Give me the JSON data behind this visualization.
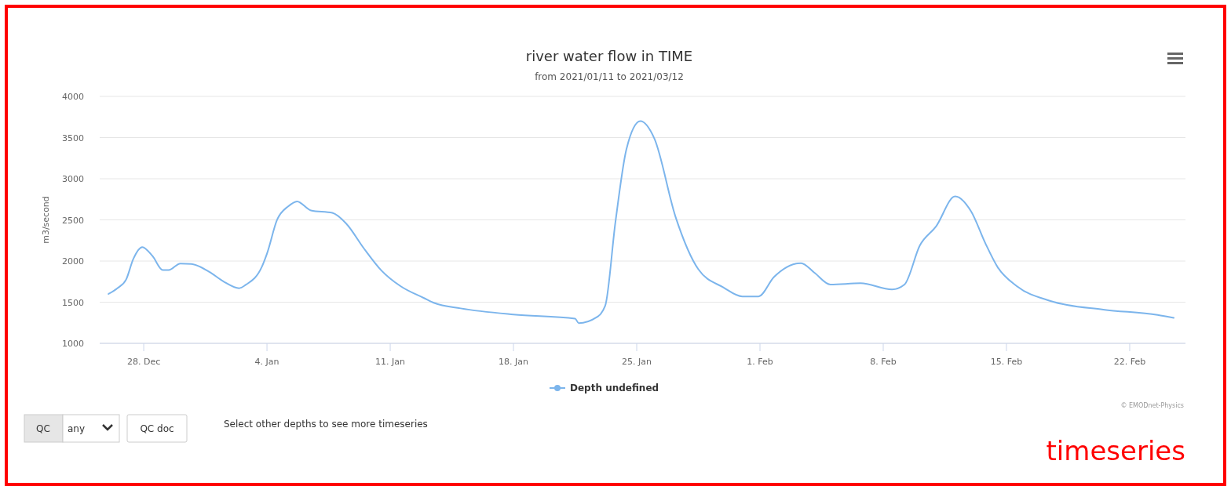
{
  "chart_data": {
    "type": "line",
    "title": "river water flow in TIME",
    "subtitle": "from 2021/01/11 to 2021/03/12",
    "ylabel": "m3/second",
    "annotations": [
      "© EMODnet-Physics",
      "QC",
      "any",
      "QC doc",
      "Select other depths to see more timeseries",
      "timeseries"
    ],
    "xlim": [
      "2020-12-25T12:00",
      "2021-02-25T04:00"
    ],
    "xticks": [
      {
        "value": "2020-12-28",
        "label": "28. Dec"
      },
      {
        "value": "2021-01-04",
        "label": "4. Jan"
      },
      {
        "value": "2021-01-11",
        "label": "11. Jan"
      },
      {
        "value": "2021-01-18",
        "label": "18. Jan"
      },
      {
        "value": "2021-01-25",
        "label": "25. Jan"
      },
      {
        "value": "2021-02-01",
        "label": "1. Feb"
      },
      {
        "value": "2021-02-08",
        "label": "8. Feb"
      },
      {
        "value": "2021-02-15",
        "label": "15. Feb"
      },
      {
        "value": "2021-02-22",
        "label": "22. Feb"
      }
    ],
    "ylim": [
      1000,
      4000
    ],
    "yticks": [
      1000,
      1500,
      2000,
      2500,
      3000,
      3500,
      4000
    ],
    "grid": "y",
    "legend": "bottom",
    "x": [
      "2020-12-26T00:00",
      "2020-12-26T12:00",
      "2020-12-27T00:00",
      "2020-12-27T10:00",
      "2020-12-27T22:00",
      "2020-12-28T12:00",
      "2020-12-29T02:00",
      "2020-12-29T10:00",
      "2020-12-30T02:00",
      "2020-12-30T17:00",
      "2020-12-31T17:00",
      "2021-01-01T14:00",
      "2021-01-02T10:00",
      "2021-01-02T19:00",
      "2021-01-03T17:00",
      "2021-01-04T00:00",
      "2021-01-04T14:00",
      "2021-01-05T05:00",
      "2021-01-05T17:00",
      "2021-01-06T12:00",
      "2021-01-07T17:00",
      "2021-01-08T12:00",
      "2021-01-09T12:00",
      "2021-01-10T12:00",
      "2021-01-11T14:00",
      "2021-01-12T22:00",
      "2021-01-13T12:00",
      "2021-01-15T00:00",
      "2021-01-18T00:00",
      "2021-01-21T12:00",
      "2021-01-21T17:00",
      "2021-01-22T17:00",
      "2021-01-23T05:00",
      "2021-01-23T19:00",
      "2021-01-24T10:00",
      "2021-01-25T05:00",
      "2021-01-26T00:00",
      "2021-01-27T05:00",
      "2021-01-28T12:00",
      "2021-01-29T22:00",
      "2021-01-31T00:00",
      "2021-01-31T22:00",
      "2021-02-01T19:00",
      "2021-02-03T08:00",
      "2021-02-04T02:00",
      "2021-02-05T00:00",
      "2021-02-06T17:00",
      "2021-02-08T12:00",
      "2021-02-09T05:00",
      "2021-02-10T02:00",
      "2021-02-11T00:00",
      "2021-02-12T02:00",
      "2021-02-13T00:00",
      "2021-02-13T19:00",
      "2021-02-14T12:00",
      "2021-02-15T14:00",
      "2021-02-17T12:00",
      "2021-02-20T12:00",
      "2021-02-23T14:00",
      "2021-02-24T12:00"
    ],
    "series": [
      {
        "name": "Depth undefined",
        "color": "#7cb5ec",
        "values": [
          1600,
          1670,
          1775,
          2030,
          2170,
          2060,
          1890,
          1890,
          1970,
          1965,
          1870,
          1745,
          1670,
          1710,
          1930,
          2090,
          2505,
          2665,
          2725,
          2615,
          2585,
          2455,
          2155,
          1885,
          1695,
          1550,
          1490,
          1425,
          1350,
          1300,
          1245,
          1315,
          1455,
          2475,
          3360,
          3700,
          3490,
          2535,
          1900,
          1680,
          1570,
          1570,
          1805,
          1975,
          1860,
          1715,
          1730,
          1655,
          1715,
          2190,
          2420,
          2785,
          2600,
          2220,
          1925,
          1695,
          1515,
          1410,
          1345,
          1310
        ]
      }
    ]
  }
}
